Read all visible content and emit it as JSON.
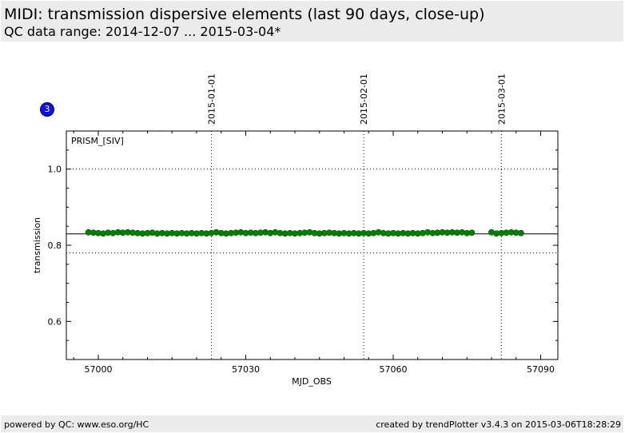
{
  "header": {
    "title": "MIDI: transmission dispersive elements (last 90 days, close-up)",
    "subtitle": "QC data range: 2014-12-07 ... 2015-03-04*"
  },
  "badge": {
    "label": "3"
  },
  "footer": {
    "left": "powered by QC: www.eso.org/HC",
    "right": "created by trendPlotter v3.4.3 on 2015-03-06T18:28:29"
  },
  "chart_data": {
    "type": "scatter",
    "xlabel": "MJD_OBS",
    "ylabel": "transmission",
    "panel_label": "PRISM_[SIV]",
    "xlim": [
      56993.5,
      57093.5
    ],
    "ylim": [
      0.5,
      1.1
    ],
    "x_ticks": [
      57000,
      57030,
      57060,
      57090
    ],
    "y_ticks": [
      0.6,
      0.8,
      1.0
    ],
    "date_markers": [
      {
        "label": "2015-01-01",
        "mjd": 57023
      },
      {
        "label": "2015-02-01",
        "mjd": 57054
      },
      {
        "label": "2015-03-01",
        "mjd": 57082
      }
    ],
    "reference_lines": {
      "solid": 0.83,
      "dotted": [
        0.78,
        1.0
      ]
    },
    "colors": {
      "points": "#008000",
      "points_edge": "#005000"
    },
    "series": [
      {
        "x": [
          56998,
          56999,
          57000,
          57001,
          57002,
          57003,
          57004,
          57005,
          57006,
          57007,
          57008,
          57009,
          57010,
          57011,
          57012,
          57013,
          57014,
          57015,
          57016,
          57017,
          57018,
          57019,
          57020,
          57021,
          57022,
          57023,
          57024,
          57025,
          57026,
          57027,
          57028,
          57029,
          57030,
          57031,
          57032,
          57033,
          57034,
          57035,
          57036,
          57037,
          57038,
          57039,
          57040,
          57041,
          57042,
          57043,
          57044,
          57045,
          57046,
          57047,
          57048,
          57049,
          57050,
          57051,
          57052,
          57053,
          57054,
          57055,
          57056,
          57057,
          57058,
          57059,
          57060,
          57061,
          57062,
          57063,
          57064,
          57065,
          57066,
          57067,
          57068,
          57069,
          57070,
          57071,
          57072,
          57073,
          57074,
          57075,
          57076,
          57080,
          57081,
          57082,
          57083,
          57084,
          57085,
          57086
        ],
        "y": [
          0.834,
          0.833,
          0.832,
          0.831,
          0.833,
          0.832,
          0.834,
          0.833,
          0.834,
          0.833,
          0.832,
          0.831,
          0.832,
          0.833,
          0.831,
          0.832,
          0.831,
          0.832,
          0.831,
          0.832,
          0.831,
          0.832,
          0.831,
          0.832,
          0.831,
          0.832,
          0.834,
          0.832,
          0.831,
          0.832,
          0.833,
          0.834,
          0.832,
          0.833,
          0.832,
          0.833,
          0.834,
          0.832,
          0.834,
          0.832,
          0.831,
          0.832,
          0.831,
          0.832,
          0.833,
          0.834,
          0.832,
          0.831,
          0.832,
          0.833,
          0.832,
          0.831,
          0.832,
          0.831,
          0.832,
          0.831,
          0.832,
          0.831,
          0.832,
          0.834,
          0.832,
          0.831,
          0.832,
          0.831,
          0.832,
          0.831,
          0.832,
          0.831,
          0.832,
          0.834,
          0.832,
          0.833,
          0.834,
          0.833,
          0.834,
          0.833,
          0.834,
          0.832,
          0.833,
          0.834,
          0.831,
          0.832,
          0.833,
          0.834,
          0.833,
          0.832
        ]
      }
    ]
  }
}
